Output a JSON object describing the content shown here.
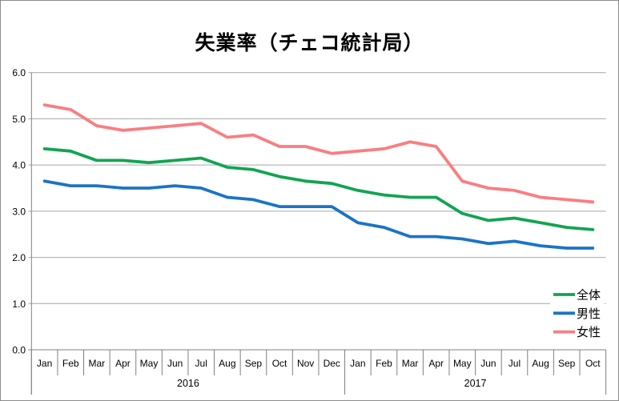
{
  "title": "失業率（チェコ統計局）",
  "chart_data": {
    "type": "line",
    "title": "失業率（チェコ統計局）",
    "categories_months": [
      "Jan",
      "Feb",
      "Mar",
      "Apr",
      "May",
      "Jun",
      "Jul",
      "Aug",
      "Sep",
      "Oct",
      "Nov",
      "Dec",
      "Jan",
      "Feb",
      "Mar",
      "Apr",
      "May",
      "Jun",
      "Jul",
      "Aug",
      "Sep",
      "Oct"
    ],
    "year_bands": [
      {
        "label": "2016",
        "span": 12
      },
      {
        "label": "2017",
        "span": 10
      }
    ],
    "ylim": [
      0,
      6
    ],
    "ytick_labels": [
      "0.0",
      "1.0",
      "2.0",
      "3.0",
      "4.0",
      "5.0",
      "6.0"
    ],
    "grid": true,
    "legend_position": "right-inside",
    "series": [
      {
        "key": "total",
        "name": "全体",
        "color": "#12A452",
        "values": [
          4.35,
          4.3,
          4.1,
          4.1,
          4.05,
          4.1,
          4.15,
          3.95,
          3.9,
          3.75,
          3.65,
          3.6,
          3.45,
          3.35,
          3.3,
          3.3,
          2.95,
          2.8,
          2.85,
          2.75,
          2.65,
          2.6
        ]
      },
      {
        "key": "male",
        "name": "男性",
        "color": "#1B74C5",
        "values": [
          3.65,
          3.55,
          3.55,
          3.5,
          3.5,
          3.55,
          3.5,
          3.3,
          3.25,
          3.1,
          3.1,
          3.1,
          2.75,
          2.65,
          2.45,
          2.45,
          2.4,
          2.3,
          2.35,
          2.25,
          2.2,
          2.2
        ]
      },
      {
        "key": "female",
        "name": "女性",
        "color": "#F87E82",
        "values": [
          5.3,
          5.2,
          4.85,
          4.75,
          4.8,
          4.85,
          4.9,
          4.6,
          4.65,
          4.4,
          4.4,
          4.25,
          4.3,
          4.35,
          4.5,
          4.4,
          3.65,
          3.5,
          3.45,
          3.3,
          3.25,
          3.2
        ]
      }
    ]
  },
  "colors": {
    "grid": "#A6A6A6",
    "axis": "#808080",
    "text": "#000000",
    "background": "#FFFFFF",
    "frame": "#8C8C8C"
  }
}
